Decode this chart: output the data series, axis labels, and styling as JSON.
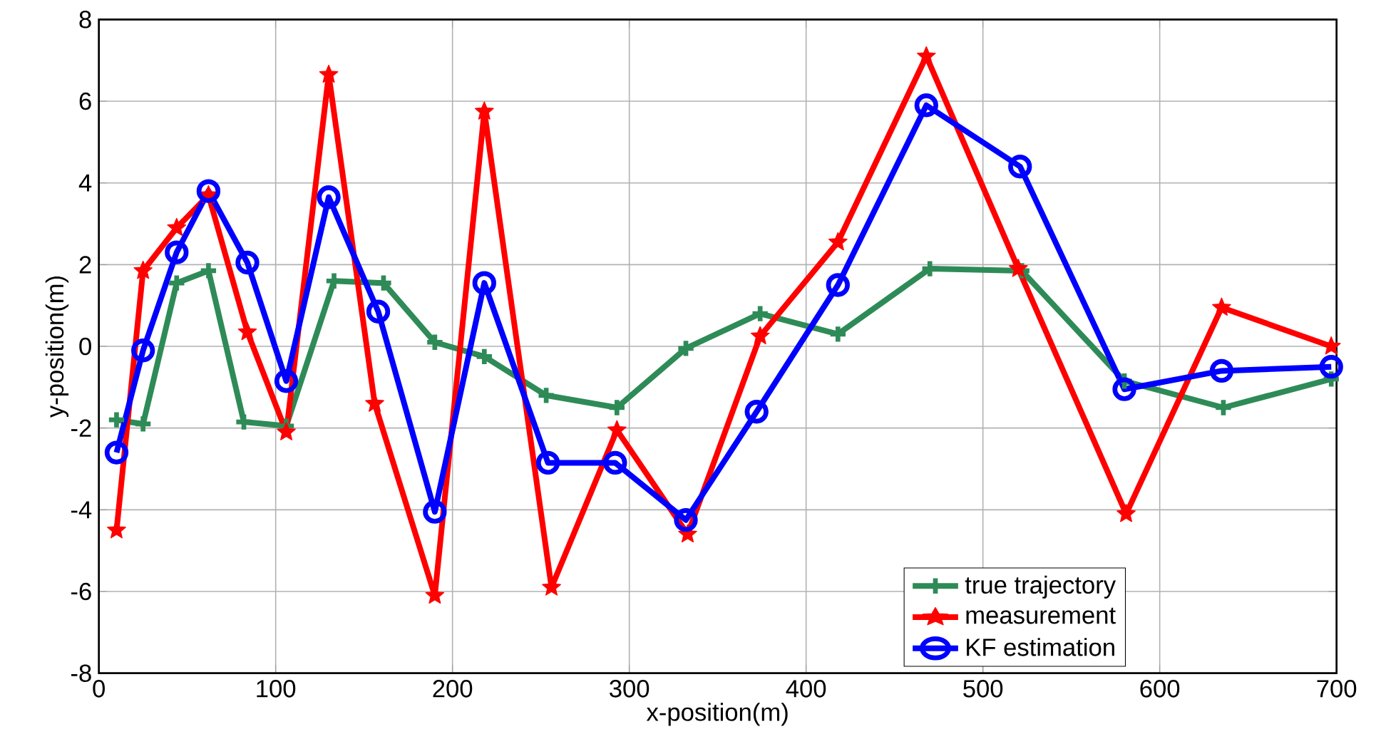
{
  "chart_data": {
    "type": "line",
    "xlabel": "x-position(m)",
    "ylabel": "y-position(m)",
    "xlim": [
      0,
      700
    ],
    "ylim": [
      -8,
      8
    ],
    "xticks": [
      0,
      100,
      200,
      300,
      400,
      500,
      600,
      700
    ],
    "yticks": [
      -8,
      -6,
      -4,
      -2,
      0,
      2,
      4,
      6,
      8
    ],
    "grid": true,
    "legend": "bottom",
    "series": [
      {
        "name": "true trajectory",
        "color": "#2e8b57",
        "marker": "cross",
        "x": [
          10,
          25,
          44,
          62,
          82,
          106,
          133,
          161,
          190,
          218,
          253,
          293,
          332,
          374,
          418,
          470,
          522,
          580,
          636,
          697
        ],
        "values": [
          -1.8,
          -1.9,
          1.55,
          1.85,
          -1.85,
          -1.95,
          1.6,
          1.55,
          0.1,
          -0.25,
          -1.2,
          -1.5,
          -0.05,
          0.8,
          0.3,
          1.9,
          1.85,
          -0.85,
          -1.5,
          -0.8
        ]
      },
      {
        "name": "measurement",
        "color": "#ff0000",
        "marker": "star",
        "x": [
          10,
          25,
          44,
          62,
          84,
          106,
          130,
          156,
          190,
          218,
          256,
          293,
          333,
          374,
          418,
          468,
          520,
          581,
          635,
          697
        ],
        "values": [
          -4.5,
          1.85,
          2.9,
          3.7,
          0.35,
          -2.1,
          6.65,
          -1.4,
          -6.1,
          5.75,
          -5.9,
          -2.05,
          -4.6,
          0.25,
          2.55,
          7.1,
          1.9,
          -4.1,
          0.95,
          0.0
        ]
      },
      {
        "name": "KF estimation",
        "color": "#0000ff",
        "marker": "circle",
        "x": [
          10,
          25,
          44,
          62,
          84,
          106,
          130,
          158,
          190,
          218,
          254,
          292,
          332,
          372,
          418,
          468,
          521,
          580,
          635,
          697
        ],
        "values": [
          -2.6,
          -0.1,
          2.3,
          3.8,
          2.05,
          -0.85,
          3.65,
          0.85,
          -4.05,
          1.55,
          -2.85,
          -2.85,
          -4.25,
          -1.6,
          1.5,
          5.9,
          4.4,
          -1.05,
          -0.6,
          -0.5
        ]
      }
    ]
  }
}
